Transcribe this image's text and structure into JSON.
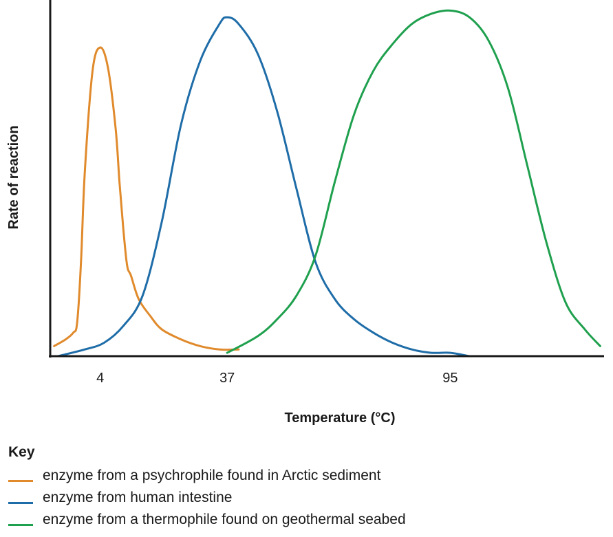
{
  "chart_data": {
    "type": "line",
    "title": "",
    "xlabel": "Temperature (°C)",
    "ylabel": "Rate of reaction",
    "xlim": [
      -9,
      135
    ],
    "ylim": [
      0,
      100
    ],
    "x_tick_labels": [
      {
        "value": 4,
        "label": "4"
      },
      {
        "value": 37,
        "label": "37"
      },
      {
        "value": 95,
        "label": "95"
      }
    ],
    "grid": false,
    "legend_title": "Key",
    "legend_position": "bottom-left",
    "series": [
      {
        "name": "enzyme from a psychrophile found in Arctic sediment",
        "color": "#E08A2C",
        "x": [
          -8,
          -5,
          -3,
          -2,
          -1,
          0,
          2,
          4,
          6,
          8,
          9,
          10,
          11,
          12,
          14,
          17,
          20,
          25,
          30,
          35,
          40
        ],
        "y": [
          3,
          5,
          7,
          10,
          28,
          55,
          85,
          92,
          86,
          68,
          52,
          38,
          27,
          24,
          17,
          12,
          8,
          5,
          3,
          2,
          2
        ]
      },
      {
        "name": "enzyme from human intestine",
        "color": "#1F6DA8",
        "x": [
          -7,
          0,
          5,
          10,
          15,
          20,
          25,
          30,
          35,
          37,
          40,
          45,
          50,
          55,
          60,
          65,
          70,
          75,
          80,
          85,
          90,
          95,
          100
        ],
        "y": [
          0,
          2,
          4,
          9,
          18,
          40,
          69,
          88,
          99,
          101,
          99,
          90,
          73,
          50,
          28,
          17,
          11,
          7,
          4,
          2,
          1,
          1,
          0
        ]
      },
      {
        "name": "enzyme from a thermophile found on geothermal seabed",
        "color": "#1FA04E",
        "x": [
          37,
          45,
          50,
          55,
          60,
          65,
          70,
          75,
          80,
          85,
          90,
          95,
          100,
          105,
          110,
          115,
          120,
          125,
          130,
          134
        ],
        "y": [
          1,
          6,
          11,
          18,
          30,
          52,
          72,
          85,
          93,
          99,
          102,
          103,
          101,
          94,
          80,
          57,
          34,
          16,
          8,
          3
        ]
      }
    ]
  }
}
